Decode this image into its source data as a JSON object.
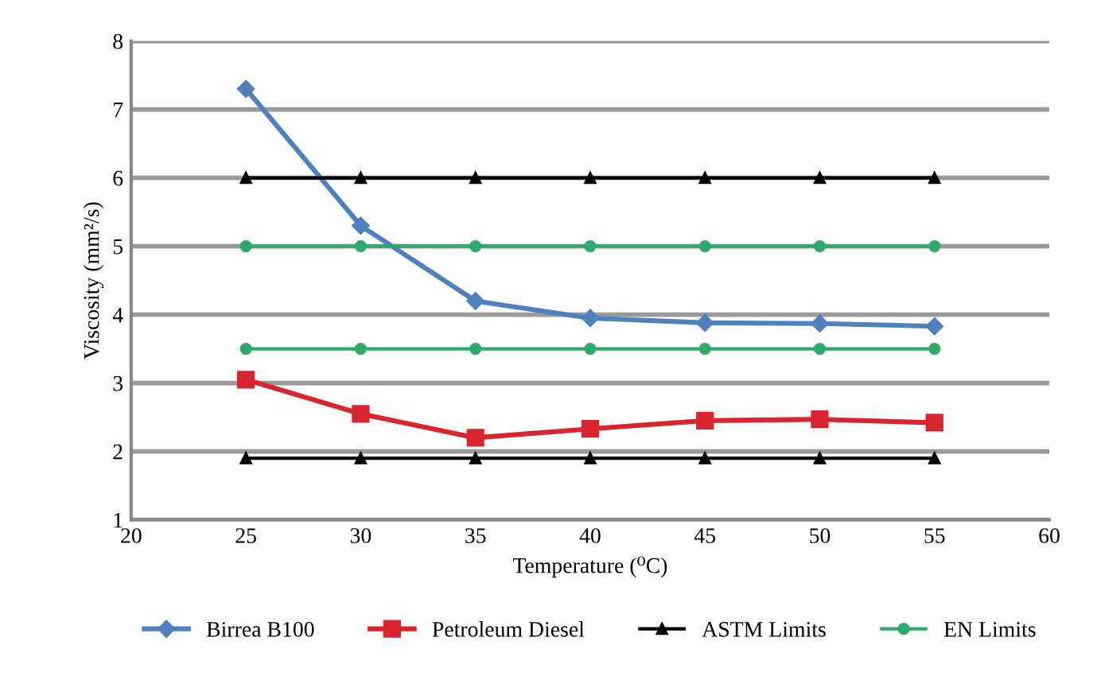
{
  "chart_data": {
    "type": "line",
    "xlabel": "Temperature (⁰C)",
    "ylabel": "Viscosity (mm²/s)",
    "x": [
      25,
      30,
      35,
      40,
      45,
      50,
      55
    ],
    "series": [
      {
        "name": "Birrea B100",
        "color": "#4f81bd",
        "marker": "diamond",
        "values": [
          7.3,
          5.3,
          4.2,
          3.95,
          3.88,
          3.87,
          3.83
        ]
      },
      {
        "name": "Petroleum Diesel",
        "color": "#d9262e",
        "marker": "square",
        "values": [
          3.05,
          2.55,
          2.2,
          2.33,
          2.45,
          2.47,
          2.42
        ]
      },
      {
        "name": "ASTM Limits",
        "color": "#000000",
        "marker": "triangle",
        "values": [
          6,
          6,
          6,
          6,
          6,
          6,
          6
        ]
      },
      {
        "color": "#000000",
        "marker": "triangle",
        "values": [
          1.9,
          1.9,
          1.9,
          1.9,
          1.9,
          1.9,
          1.9
        ]
      },
      {
        "name": "EN Limits",
        "color": "#2eaa6a",
        "marker": "circle",
        "values": [
          5,
          5,
          5,
          5,
          5,
          5,
          5
        ]
      },
      {
        "color": "#2eaa6a",
        "marker": "circle",
        "values": [
          3.5,
          3.5,
          3.5,
          3.5,
          3.5,
          3.5,
          3.5
        ]
      }
    ],
    "xlim": [
      20,
      60
    ],
    "xticks": [
      20,
      25,
      30,
      35,
      40,
      45,
      50,
      55,
      60
    ],
    "ylim": [
      1,
      8
    ],
    "yticks": [
      1,
      2,
      3,
      4,
      5,
      6,
      7,
      8
    ],
    "grid": "y",
    "legend": "bottom"
  }
}
